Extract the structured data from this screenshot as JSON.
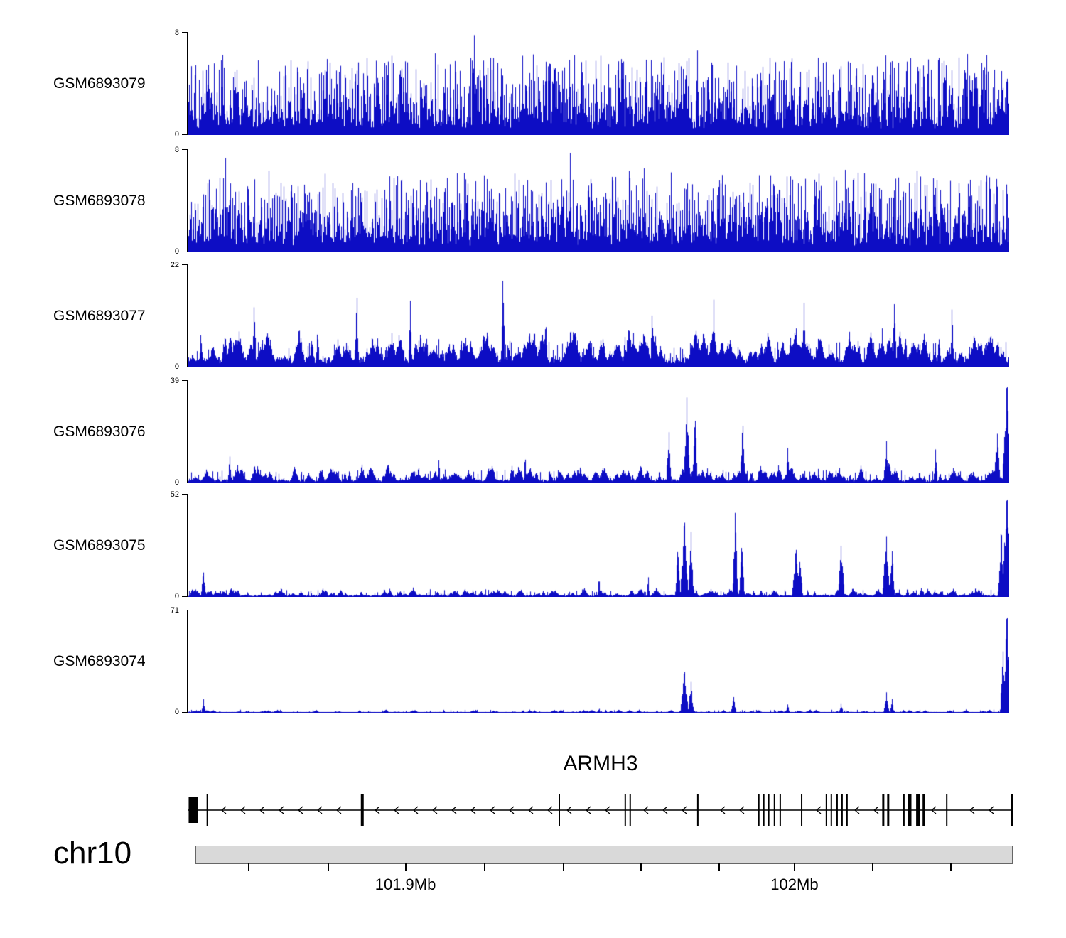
{
  "chart_data": {
    "type": "area",
    "description": "Genome browser read-coverage tracks (blue area signal) for six GEO samples over the ARMH3 locus on chr10",
    "signal_color": "#0d0dc4",
    "axis_zero_label": "0",
    "tracks": [
      {
        "name": "GSM6893079",
        "ymax": 8,
        "seed": 101,
        "base": 1.3,
        "grass": {
          "prob": 0.85,
          "amp": 5.2,
          "pow": 1.6
        },
        "events": {
          "count": 260,
          "hmin": 0.8,
          "hmax": 4.5,
          "wmin": 1,
          "wmax": 4
        },
        "peaks": [
          [
            0.348,
            8,
            2
          ],
          [
            0.022,
            6.6,
            2
          ],
          [
            0.14,
            6.4,
            2
          ],
          [
            0.47,
            6.7,
            2
          ],
          [
            0.62,
            6.9,
            2
          ],
          [
            0.77,
            6.3,
            2
          ],
          [
            0.86,
            6.5,
            2
          ],
          [
            0.97,
            6.4,
            2
          ]
        ]
      },
      {
        "name": "GSM6893078",
        "ymax": 8,
        "seed": 202,
        "base": 1.3,
        "grass": {
          "prob": 0.85,
          "amp": 5.2,
          "pow": 1.6
        },
        "events": {
          "count": 260,
          "hmin": 0.8,
          "hmax": 4.5,
          "wmin": 1,
          "wmax": 4
        },
        "peaks": [
          [
            0.465,
            8,
            2
          ],
          [
            0.045,
            7.4,
            2
          ],
          [
            0.21,
            7.3,
            2
          ],
          [
            0.34,
            6.9,
            2
          ],
          [
            0.555,
            6.6,
            2
          ],
          [
            0.66,
            6.8,
            2
          ],
          [
            0.8,
            6.4,
            2
          ],
          [
            0.95,
            7.0,
            2
          ]
        ]
      },
      {
        "name": "GSM6893077",
        "ymax": 22,
        "seed": 303,
        "base": 2.2,
        "grass": {
          "prob": 0.3,
          "amp": 4.0,
          "pow": 2.0
        },
        "events": {
          "count": 200,
          "hmin": 2.0,
          "hmax": 9.0,
          "wmin": 3,
          "wmax": 12
        },
        "peaks": [
          [
            0.383,
            22,
            3
          ],
          [
            0.08,
            15.5,
            3
          ],
          [
            0.205,
            16,
            3
          ],
          [
            0.27,
            15,
            3
          ],
          [
            0.435,
            14.5,
            3
          ],
          [
            0.565,
            14,
            3
          ],
          [
            0.64,
            15.5,
            3
          ],
          [
            0.75,
            15,
            3
          ],
          [
            0.86,
            15,
            3
          ],
          [
            0.93,
            13,
            3
          ]
        ]
      },
      {
        "name": "GSM6893076",
        "ymax": 39,
        "seed": 404,
        "base": 1.5,
        "grass": {
          "prob": 0.3,
          "amp": 4.0,
          "pow": 2.0
        },
        "events": {
          "count": 170,
          "hmin": 1.5,
          "hmax": 8.0,
          "wmin": 3,
          "wmax": 10
        },
        "peaks": [
          [
            0.05,
            11,
            3
          ],
          [
            0.305,
            12,
            2
          ],
          [
            0.41,
            13,
            2
          ],
          [
            0.585,
            21,
            4
          ],
          [
            0.607,
            33,
            5
          ],
          [
            0.617,
            26,
            4
          ],
          [
            0.675,
            24,
            4
          ],
          [
            0.73,
            14,
            3
          ],
          [
            0.85,
            17,
            4
          ],
          [
            0.91,
            13,
            3
          ],
          [
            0.985,
            20,
            5
          ],
          [
            0.997,
            39,
            7
          ]
        ]
      },
      {
        "name": "GSM6893075",
        "ymax": 52,
        "seed": 505,
        "base": 1.0,
        "grass": {
          "prob": 0.22,
          "amp": 3.0,
          "pow": 2.0
        },
        "events": {
          "count": 150,
          "hmin": 1.0,
          "hmax": 5.0,
          "wmin": 3,
          "wmax": 9
        },
        "peaks": [
          [
            0.018,
            13,
            4
          ],
          [
            0.5,
            13,
            2
          ],
          [
            0.56,
            11,
            2
          ],
          [
            0.596,
            25,
            4
          ],
          [
            0.604,
            40,
            6
          ],
          [
            0.612,
            34,
            4
          ],
          [
            0.666,
            45,
            4
          ],
          [
            0.674,
            28,
            4
          ],
          [
            0.74,
            25,
            6
          ],
          [
            0.745,
            20,
            4
          ],
          [
            0.795,
            27,
            5
          ],
          [
            0.85,
            32,
            6
          ],
          [
            0.857,
            24,
            4
          ],
          [
            0.99,
            35,
            5
          ],
          [
            0.997,
            52,
            8
          ]
        ]
      },
      {
        "name": "GSM6893074",
        "ymax": 71,
        "seed": 606,
        "base": 0.55,
        "grass": {
          "prob": 0.13,
          "amp": 1.8,
          "pow": 2.0
        },
        "events": {
          "count": 110,
          "hmin": 0.5,
          "hmax": 2.5,
          "wmin": 2,
          "wmax": 8
        },
        "peaks": [
          [
            0.018,
            10,
            3
          ],
          [
            0.5,
            4,
            2
          ],
          [
            0.604,
            30,
            6
          ],
          [
            0.612,
            22,
            4
          ],
          [
            0.664,
            11,
            4
          ],
          [
            0.73,
            6,
            3
          ],
          [
            0.795,
            7,
            3
          ],
          [
            0.85,
            15,
            4
          ],
          [
            0.857,
            10,
            3
          ],
          [
            0.992,
            45,
            4
          ],
          [
            0.997,
            71,
            6
          ]
        ]
      }
    ],
    "gene": {
      "name": "ARMH3",
      "strand": "minus",
      "exons": [
        {
          "pos": 0.006,
          "w": 13,
          "h": 36
        },
        {
          "pos": 0.023,
          "w": 2,
          "h": 46
        },
        {
          "pos": 0.211,
          "w": 4,
          "h": 46
        },
        {
          "pos": 0.45,
          "w": 2,
          "h": 46
        },
        {
          "pos": 0.53,
          "w": 2,
          "h": 44
        },
        {
          "pos": 0.536,
          "w": 2,
          "h": 44
        },
        {
          "pos": 0.618,
          "w": 2,
          "h": 46
        },
        {
          "pos": 0.692,
          "w": 2,
          "h": 44
        },
        {
          "pos": 0.698,
          "w": 2,
          "h": 44
        },
        {
          "pos": 0.704,
          "w": 2,
          "h": 44
        },
        {
          "pos": 0.711,
          "w": 2,
          "h": 44
        },
        {
          "pos": 0.718,
          "w": 2,
          "h": 44
        },
        {
          "pos": 0.744,
          "w": 2,
          "h": 44
        },
        {
          "pos": 0.774,
          "w": 2,
          "h": 44
        },
        {
          "pos": 0.78,
          "w": 2,
          "h": 44
        },
        {
          "pos": 0.787,
          "w": 2,
          "h": 44
        },
        {
          "pos": 0.793,
          "w": 2,
          "h": 44
        },
        {
          "pos": 0.799,
          "w": 2,
          "h": 44
        },
        {
          "pos": 0.843,
          "w": 3,
          "h": 44
        },
        {
          "pos": 0.849,
          "w": 3,
          "h": 44
        },
        {
          "pos": 0.868,
          "w": 2,
          "h": 44
        },
        {
          "pos": 0.875,
          "w": 5,
          "h": 44
        },
        {
          "pos": 0.885,
          "w": 5,
          "h": 44
        },
        {
          "pos": 0.892,
          "w": 3,
          "h": 44
        },
        {
          "pos": 0.92,
          "w": 2,
          "h": 44
        },
        {
          "pos": 0.999,
          "w": 3,
          "h": 46
        }
      ]
    },
    "ruler": {
      "chromosome": "chr10",
      "ticks": [
        {
          "pos": 0.065,
          "label": ""
        },
        {
          "pos": 0.163,
          "label": ""
        },
        {
          "pos": 0.257,
          "label": "101.9Mb"
        },
        {
          "pos": 0.354,
          "label": ""
        },
        {
          "pos": 0.45,
          "label": ""
        },
        {
          "pos": 0.545,
          "label": ""
        },
        {
          "pos": 0.641,
          "label": ""
        },
        {
          "pos": 0.733,
          "label": "102Mb"
        },
        {
          "pos": 0.829,
          "label": ""
        },
        {
          "pos": 0.924,
          "label": ""
        }
      ]
    }
  }
}
